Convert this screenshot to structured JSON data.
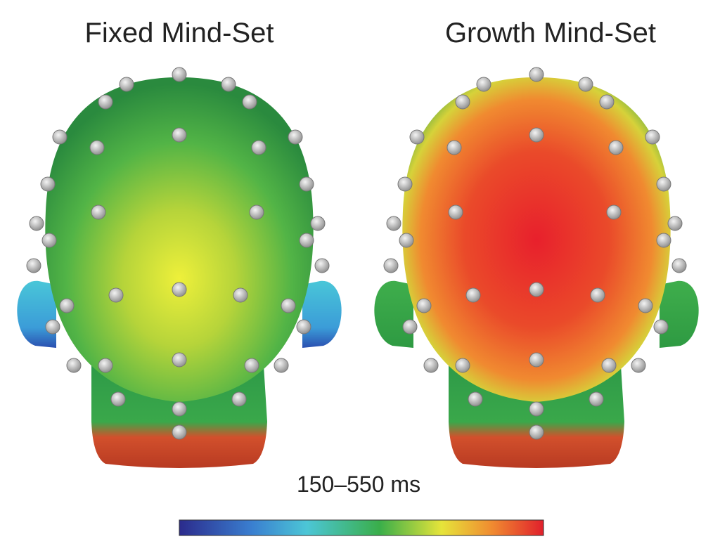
{
  "panels": [
    {
      "title": "Fixed Mind-Set"
    },
    {
      "title": "Growth Mind-Set"
    }
  ],
  "colorbar": {
    "label": "150–550 ms"
  }
}
